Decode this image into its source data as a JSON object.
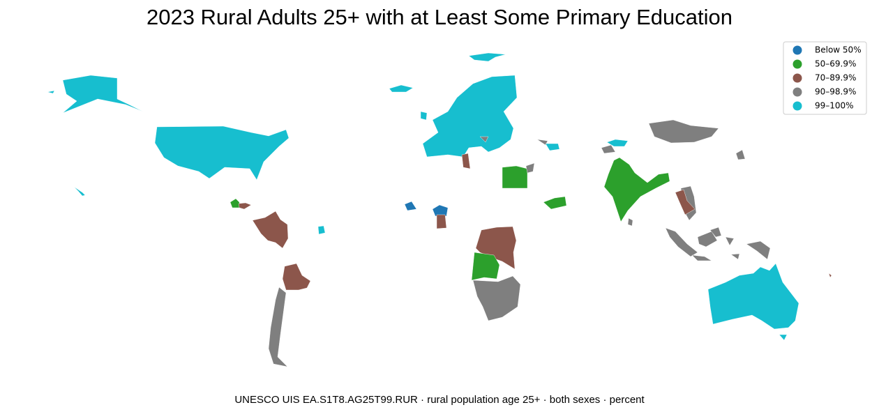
{
  "title": "2023 Rural Adults 25+ with at Least Some Primary Education",
  "legend": {
    "position": "upper right",
    "items": [
      {
        "label": "Below 50%",
        "color": "#1f77b4"
      },
      {
        "label": "50–69.9%",
        "color": "#2ca02c"
      },
      {
        "label": "70–89.9%",
        "color": "#8c564b"
      },
      {
        "label": "90–98.9%",
        "color": "#7f7f7f"
      },
      {
        "label": "99–100%",
        "color": "#17becf"
      }
    ]
  },
  "source": "UNESCO UIS EA.S1T8.AG25T99.RUR · rural population age 25+ · both sexes · percent"
}
